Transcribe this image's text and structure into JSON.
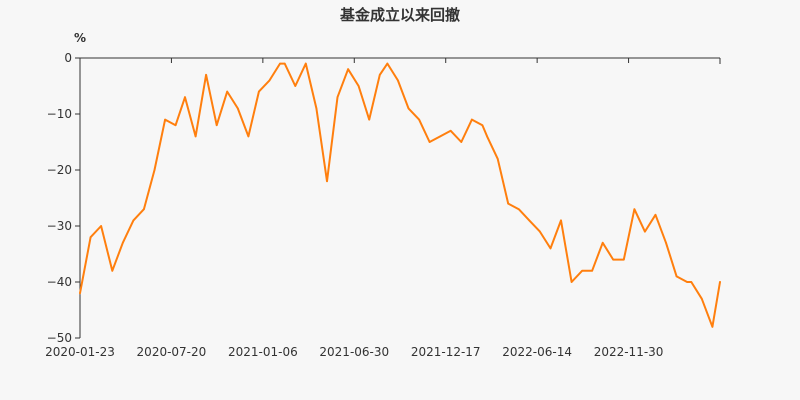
{
  "chart_data": {
    "type": "line",
    "title": "基金成立以来回撤",
    "y_unit_label": "%",
    "xlabel": "",
    "ylabel": "",
    "ylim": [
      -50,
      0
    ],
    "yticks": [
      0,
      -10,
      -20,
      -30,
      -40,
      -50
    ],
    "ytick_labels": [
      "0",
      "−10",
      "−20",
      "−30",
      "−40",
      "−50"
    ],
    "xtick_labels": [
      "2020-01-23",
      "2020-07-20",
      "2021-01-06",
      "2021-06-30",
      "2021-12-17",
      "2022-06-14",
      "2022-11-30"
    ],
    "grid": false,
    "legend": "none",
    "series": [
      {
        "color": "#ff7f0e",
        "x": [
          "2020-01-23",
          "2020-02-10",
          "2020-02-28",
          "2020-03-18",
          "2020-04-05",
          "2020-04-23",
          "2020-05-11",
          "2020-05-29",
          "2020-06-16",
          "2020-07-04",
          "2020-07-20",
          "2020-08-07",
          "2020-08-25",
          "2020-09-12",
          "2020-09-30",
          "2020-10-18",
          "2020-11-05",
          "2020-11-23",
          "2020-12-11",
          "2020-12-29",
          "2021-01-06",
          "2021-01-24",
          "2021-02-11",
          "2021-03-01",
          "2021-03-19",
          "2021-04-06",
          "2021-04-24",
          "2021-05-12",
          "2021-05-30",
          "2021-06-17",
          "2021-06-30",
          "2021-07-18",
          "2021-08-05",
          "2021-08-23",
          "2021-09-10",
          "2021-09-28",
          "2021-10-16",
          "2021-11-03",
          "2021-11-21",
          "2021-12-09",
          "2021-12-17",
          "2022-01-04",
          "2022-01-22",
          "2022-02-09",
          "2022-02-27",
          "2022-03-17",
          "2022-04-04",
          "2022-04-22",
          "2022-05-10",
          "2022-05-28",
          "2022-06-14",
          "2022-07-02",
          "2022-07-20",
          "2022-08-07",
          "2022-08-25",
          "2022-09-12",
          "2022-09-30",
          "2022-10-18",
          "2022-11-05",
          "2022-11-23",
          "2022-11-30",
          "2022-12-18",
          "2023-01-05",
          "2023-01-18"
        ],
        "values": [
          -42,
          -32,
          -30,
          -38,
          -33,
          -29,
          -27,
          -20,
          -11,
          -12,
          -7,
          -14,
          -3,
          -12,
          -6,
          -9,
          -14,
          -6,
          -4,
          -1,
          -1,
          -5,
          -1,
          -9,
          -22,
          -7,
          -2,
          -5,
          -11,
          -3,
          -1,
          -4,
          -9,
          -11,
          -15,
          -14,
          -13,
          -15,
          -11,
          -12,
          -14,
          -18,
          -26,
          -27,
          -29,
          -31,
          -34,
          -29,
          -40,
          -38,
          -38,
          -33,
          -36,
          -36,
          -27,
          -31,
          -28,
          -33,
          -39,
          -40,
          -40,
          -43,
          -48,
          -40
        ]
      }
    ]
  }
}
